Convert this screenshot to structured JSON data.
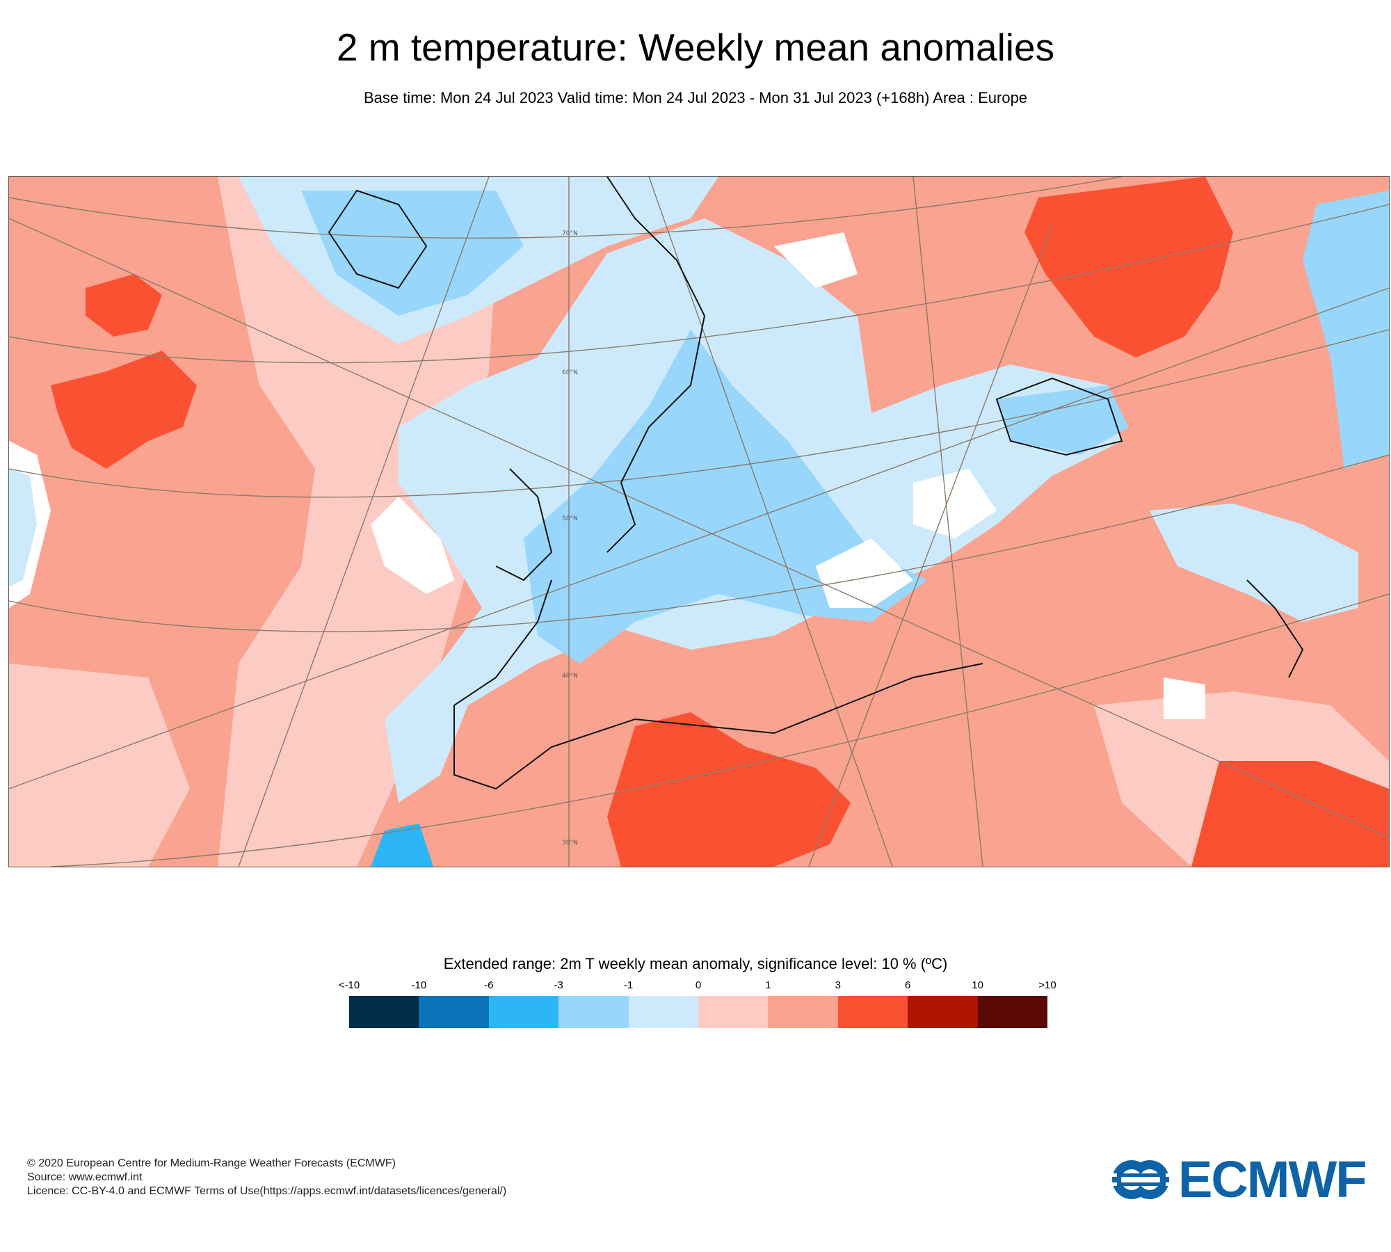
{
  "title": "2 m temperature: Weekly mean anomalies",
  "subtitle": "Base time: Mon 24 Jul 2023 Valid time: Mon 24 Jul 2023 - Mon 31 Jul 2023 (+168h) Area : Europe",
  "map": {
    "area": "Europe",
    "lat_labels": [
      "70°N",
      "60°N",
      "50°N",
      "40°N",
      "30°N"
    ]
  },
  "legend": {
    "title": "Extended range: 2m T weekly mean anomaly, significance level: 10 % (ºC)",
    "ticks": [
      "<-10",
      "-10",
      "-6",
      "-3",
      "-1",
      "0",
      "1",
      "3",
      "6",
      "10",
      ">10"
    ],
    "colors": [
      "#022d4a",
      "#0b73b8",
      "#2db6f5",
      "#98d7fb",
      "#cdeafc",
      "#fcccc4",
      "#f9a390",
      "#fb5133",
      "#ad1500",
      "#5a0a02"
    ]
  },
  "footer": {
    "copyright": "© 2020 European Centre for Medium-Range Weather Forecasts (ECMWF)",
    "source": "Source: www.ecmwf.int",
    "licence": "Licence: CC-BY-4.0 and ECMWF Terms of Use(https://apps.ecmwf.int/datasets/licences/general/)"
  },
  "logo": {
    "text": "ECMWF",
    "color": "#0e63a8"
  }
}
